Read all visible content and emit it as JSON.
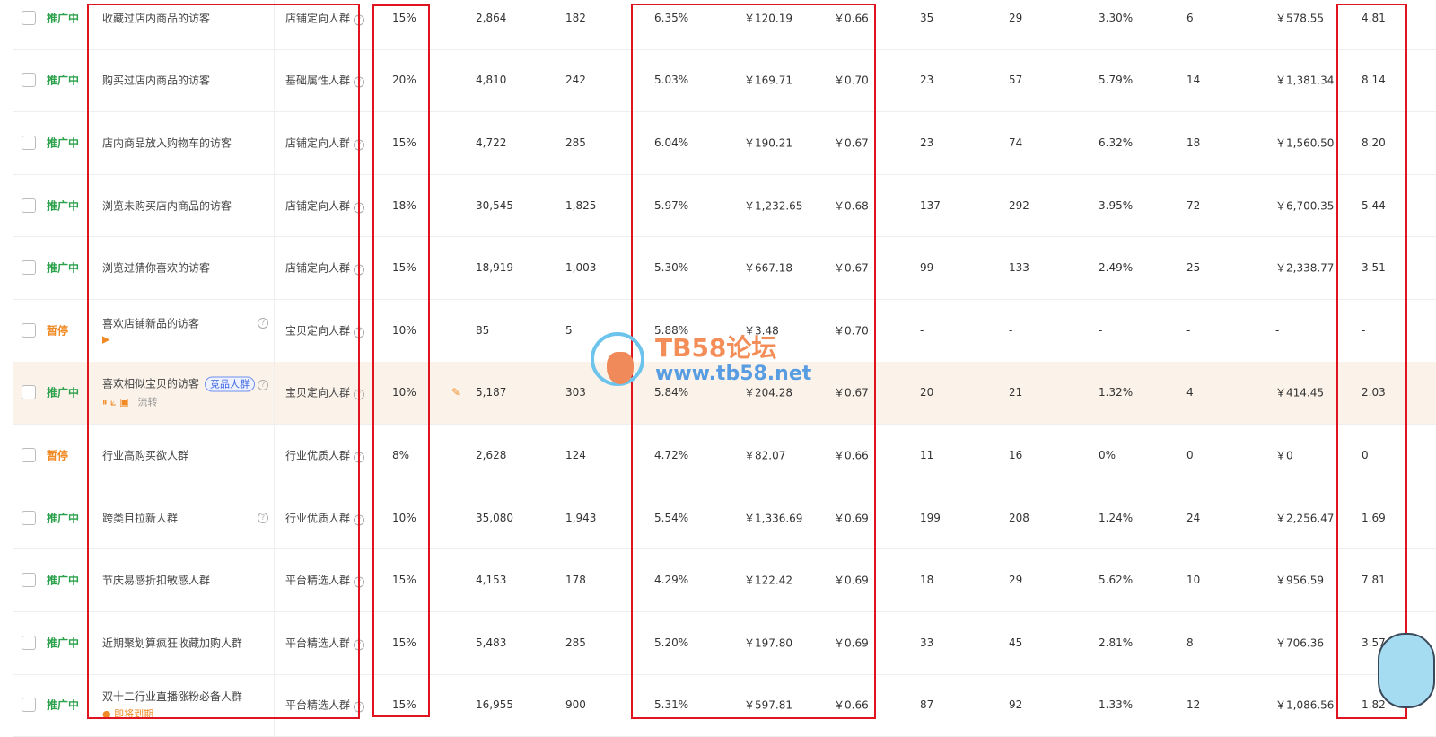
{
  "colors": {
    "active": "#2aa14a",
    "paused": "#f08a24",
    "highlight": "#fbf3ea",
    "annotation": "#e0141e"
  },
  "watermark": {
    "title": "TB58论坛",
    "url": "www.tb58.net"
  },
  "rows": [
    {
      "status": "推广中",
      "name": "收藏过店内商品的访客",
      "type": "店铺定向人群",
      "pct": "15%",
      "vals": [
        "2,864",
        "182",
        "6.35%",
        "￥120.19",
        "￥0.66",
        "35",
        "29",
        "3.30%",
        "6",
        "￥578.55",
        "4.81"
      ]
    },
    {
      "status": "推广中",
      "name": "购买过店内商品的访客",
      "type": "基础属性人群",
      "pct": "20%",
      "vals": [
        "4,810",
        "242",
        "5.03%",
        "￥169.71",
        "￥0.70",
        "23",
        "57",
        "5.79%",
        "14",
        "￥1,381.34",
        "8.14"
      ]
    },
    {
      "status": "推广中",
      "name": "店内商品放入购物车的访客",
      "type": "店铺定向人群",
      "pct": "15%",
      "vals": [
        "4,722",
        "285",
        "6.04%",
        "￥190.21",
        "￥0.67",
        "23",
        "74",
        "6.32%",
        "18",
        "￥1,560.50",
        "8.20"
      ]
    },
    {
      "status": "推广中",
      "name": "浏览未购买店内商品的访客",
      "type": "店铺定向人群",
      "pct": "18%",
      "vals": [
        "30,545",
        "1,825",
        "5.97%",
        "￥1,232.65",
        "￥0.68",
        "137",
        "292",
        "3.95%",
        "72",
        "￥6,700.35",
        "5.44"
      ]
    },
    {
      "status": "推广中",
      "name": "浏览过猜你喜欢的访客",
      "type": "店铺定向人群",
      "pct": "15%",
      "vals": [
        "18,919",
        "1,003",
        "5.30%",
        "￥667.18",
        "￥0.67",
        "99",
        "133",
        "2.49%",
        "25",
        "￥2,338.77",
        "3.51"
      ]
    },
    {
      "status": "暂停",
      "paused": true,
      "name": "喜欢店铺新品的访客",
      "help": true,
      "icons": "▶",
      "type": "宝贝定向人群",
      "pct": "10%",
      "vals": [
        "85",
        "5",
        "5.88%",
        "￥3.48",
        "￥0.70",
        "-",
        "-",
        "-",
        "-",
        "-",
        "-"
      ]
    },
    {
      "status": "推广中",
      "name": "喜欢相似宝贝的访客",
      "tag": "竞品人群",
      "help": true,
      "icons": "⏸ ⟀ ▣",
      "flow": "流转",
      "highlight": true,
      "edit": true,
      "type": "宝贝定向人群",
      "pct": "10%",
      "vals": [
        "5,187",
        "303",
        "5.84%",
        "￥204.28",
        "￥0.67",
        "20",
        "21",
        "1.32%",
        "4",
        "￥414.45",
        "2.03"
      ]
    },
    {
      "status": "暂停",
      "paused": true,
      "name": "行业高购买欲人群",
      "type": "行业优质人群",
      "pct": "8%",
      "vals": [
        "2,628",
        "124",
        "4.72%",
        "￥82.07",
        "￥0.66",
        "11",
        "16",
        "0%",
        "0",
        "￥0",
        "0"
      ]
    },
    {
      "status": "推广中",
      "name": "跨类目拉新人群",
      "help": true,
      "type": "行业优质人群",
      "pct": "10%",
      "vals": [
        "35,080",
        "1,943",
        "5.54%",
        "￥1,336.69",
        "￥0.69",
        "199",
        "208",
        "1.24%",
        "24",
        "￥2,256.47",
        "1.69"
      ]
    },
    {
      "status": "推广中",
      "name": "节庆易感折扣敏感人群",
      "type": "平台精选人群",
      "pct": "15%",
      "vals": [
        "4,153",
        "178",
        "4.29%",
        "￥122.42",
        "￥0.69",
        "18",
        "29",
        "5.62%",
        "10",
        "￥956.59",
        "7.81"
      ]
    },
    {
      "status": "推广中",
      "name": "近期聚划算疯狂收藏加购人群",
      "type": "平台精选人群",
      "pct": "15%",
      "vals": [
        "5,483",
        "285",
        "5.20%",
        "￥197.80",
        "￥0.69",
        "33",
        "45",
        "2.81%",
        "8",
        "￥706.36",
        "3.57"
      ]
    },
    {
      "status": "推广中",
      "name": "双十二行业直播涨粉必备人群",
      "expiring": "即将到期",
      "type": "平台精选人群",
      "pct": "15%",
      "vals": [
        "16,955",
        "900",
        "5.31%",
        "￥597.81",
        "￥0.66",
        "87",
        "92",
        "1.33%",
        "12",
        "￥1,086.56",
        "1.82"
      ]
    }
  ]
}
